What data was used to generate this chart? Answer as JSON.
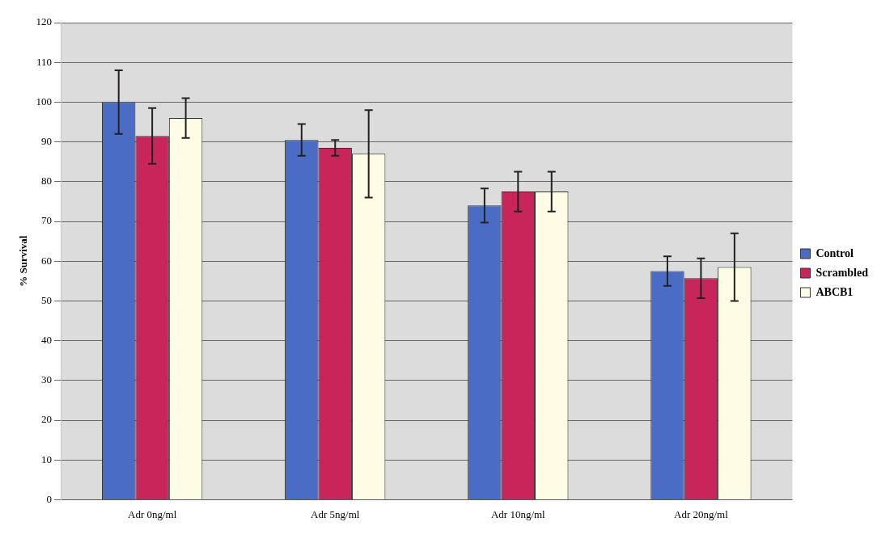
{
  "chart_data": {
    "type": "bar",
    "ylabel": "% Survival",
    "categories": [
      "Adr 0ng/ml",
      "Adr 5ng/ml",
      "Adr 10ng/ml",
      "Adr 20ng/ml"
    ],
    "series": [
      {
        "name": "Control",
        "color": "#4a6cc4",
        "values": [
          100,
          90.5,
          74,
          57.5
        ],
        "errors": [
          8,
          4,
          4.3,
          3.7
        ]
      },
      {
        "name": "Scrambled",
        "color": "#c8265a",
        "values": [
          91.5,
          88.5,
          77.5,
          55.7
        ],
        "errors": [
          7,
          2,
          5,
          5
        ]
      },
      {
        "name": "ABCB1",
        "color": "#fdfde6",
        "values": [
          96,
          87,
          77.5,
          58.5
        ],
        "errors": [
          5,
          11,
          5,
          8.5
        ]
      }
    ],
    "ylim": [
      0,
      120
    ],
    "yticks": [
      0,
      10,
      20,
      30,
      40,
      50,
      60,
      70,
      80,
      90,
      100,
      110,
      120
    ],
    "grid": "y",
    "legend": "right"
  }
}
